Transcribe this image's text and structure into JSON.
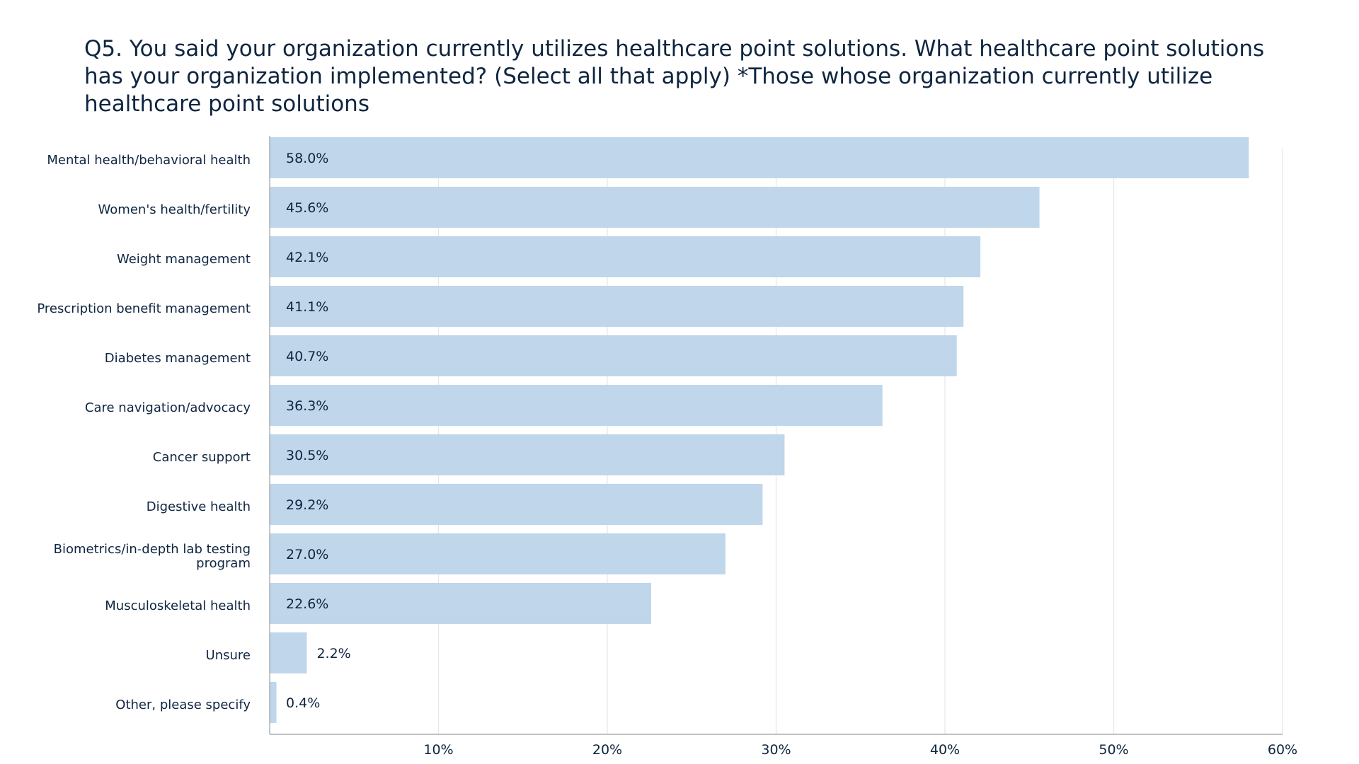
{
  "chart_data": {
    "type": "bar",
    "orientation": "horizontal",
    "title": "Q5. You said your organization currently utilizes healthcare point solutions. What healthcare point solutions has your organization implemented? (Select all that apply) *Those whose organization currently utilize healthcare point solutions",
    "categories": [
      [
        "Mental health/behavioral health"
      ],
      [
        "Women's health/fertility"
      ],
      [
        "Weight management"
      ],
      [
        "Prescription benefit management"
      ],
      [
        "Diabetes management"
      ],
      [
        "Care navigation/advocacy"
      ],
      [
        "Cancer support"
      ],
      [
        "Digestive health"
      ],
      [
        "Biometrics/in-depth lab testing",
        "program"
      ],
      [
        "Musculoskeletal health"
      ],
      [
        "Unsure"
      ],
      [
        "Other, please specify"
      ]
    ],
    "values": [
      58.0,
      45.6,
      42.1,
      41.1,
      40.7,
      36.3,
      30.5,
      29.2,
      27.0,
      22.6,
      2.2,
      0.4
    ],
    "value_labels": [
      "58.0%",
      "45.6%",
      "42.1%",
      "41.1%",
      "40.7%",
      "36.3%",
      "30.5%",
      "29.2%",
      "27.0%",
      "22.6%",
      "2.2%",
      "0.4%"
    ],
    "xlim": [
      0,
      60
    ],
    "x_ticks": [
      10,
      20,
      30,
      40,
      50,
      60
    ],
    "x_tick_labels": [
      "10%",
      "20%",
      "30%",
      "40%",
      "50%",
      "60%"
    ],
    "xlabel": "",
    "ylabel": "",
    "grid": true,
    "legend": "none",
    "bar_color": "#c0d6ea",
    "text_color": "#0f2540",
    "grid_color": "#e6e6e6",
    "axis_color": "#9aa0a6"
  }
}
